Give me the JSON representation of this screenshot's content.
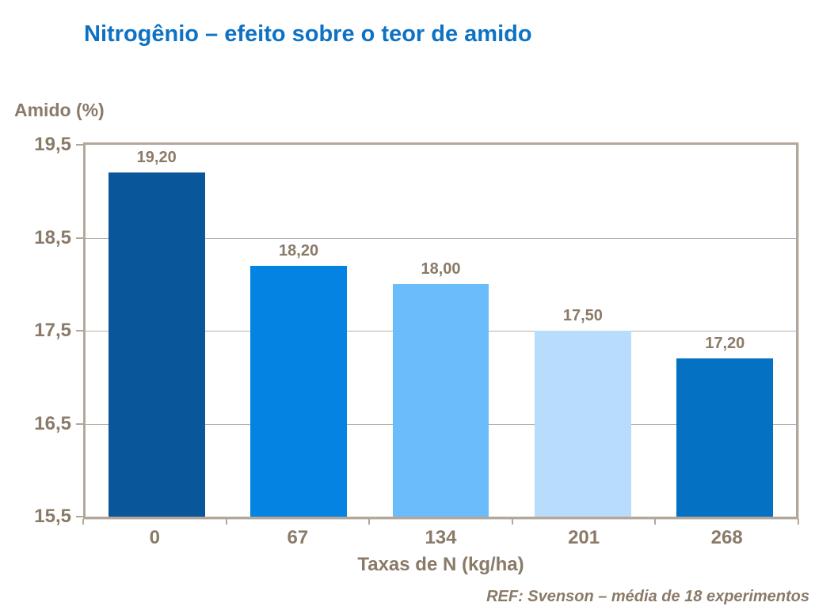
{
  "chart_data": {
    "type": "bar",
    "title": "Nitrogênio – efeito sobre o teor de amido",
    "ylabel": "Amido (%)",
    "xlabel": "Taxas de N (kg/ha)",
    "footnote": "REF: Svenson – média de 18 experimentos",
    "categories": [
      "0",
      "67",
      "134",
      "201",
      "268"
    ],
    "values": [
      19.2,
      18.2,
      18.0,
      17.5,
      17.2
    ],
    "value_labels": [
      "19,20",
      "18,20",
      "18,00",
      "17,50",
      "17,20"
    ],
    "bar_colors": [
      "#0a569b",
      "#0583e3",
      "#6bbcfb",
      "#b8dcfb",
      "#0571c2"
    ],
    "ylim": [
      15.5,
      19.5
    ],
    "yticks": [
      19.5,
      18.5,
      17.5,
      16.5,
      15.5
    ],
    "ytick_labels": [
      "19,5",
      "18,5",
      "17,5",
      "16,5",
      "15,5"
    ],
    "grid": true,
    "legend_position": "none",
    "colors": {
      "title": "#0e72c4",
      "text": "#8a7a68",
      "frame": "#b2a79a",
      "gridline": "#b7afa4",
      "background": "#ffffff"
    }
  }
}
